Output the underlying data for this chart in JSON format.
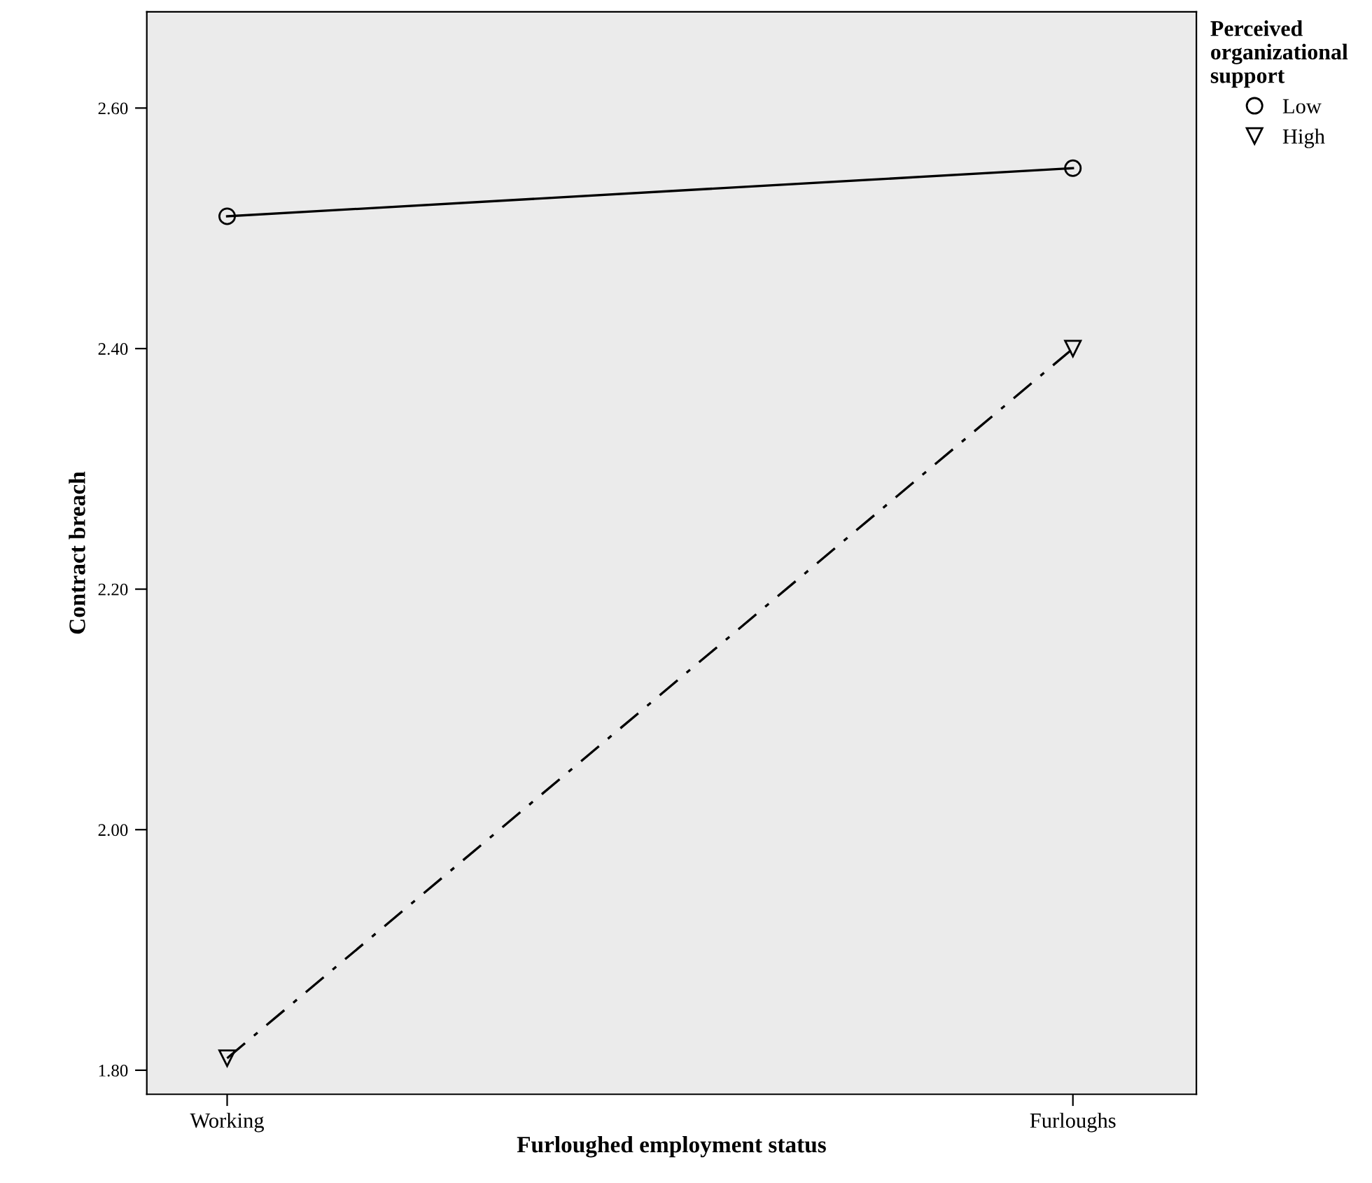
{
  "chart_data": {
    "type": "line",
    "xlabel": "Furloughed employment status",
    "ylabel": "Contract breach",
    "legend_title": "Perceived\norganizational\nsupport",
    "categories": [
      "Working",
      "Furloughs"
    ],
    "series": [
      {
        "name": "Low",
        "color": "#000000",
        "values": [
          2.51,
          2.55
        ],
        "marker": "circle",
        "line_style": "solid"
      },
      {
        "name": "High",
        "color": "#000000",
        "values": [
          1.81,
          2.4
        ],
        "marker": "triangle",
        "line_style": "dashdot"
      }
    ],
    "ylim": [
      1.78,
      2.68
    ],
    "yticks": [
      {
        "value": 1.8,
        "label": "1.80"
      },
      {
        "value": 2.0,
        "label": "2.00"
      },
      {
        "value": 2.2,
        "label": "2.20"
      },
      {
        "value": 2.4,
        "label": "2.40"
      },
      {
        "value": 2.6,
        "label": "2.60"
      }
    ],
    "grid": false,
    "legend": "top right"
  }
}
